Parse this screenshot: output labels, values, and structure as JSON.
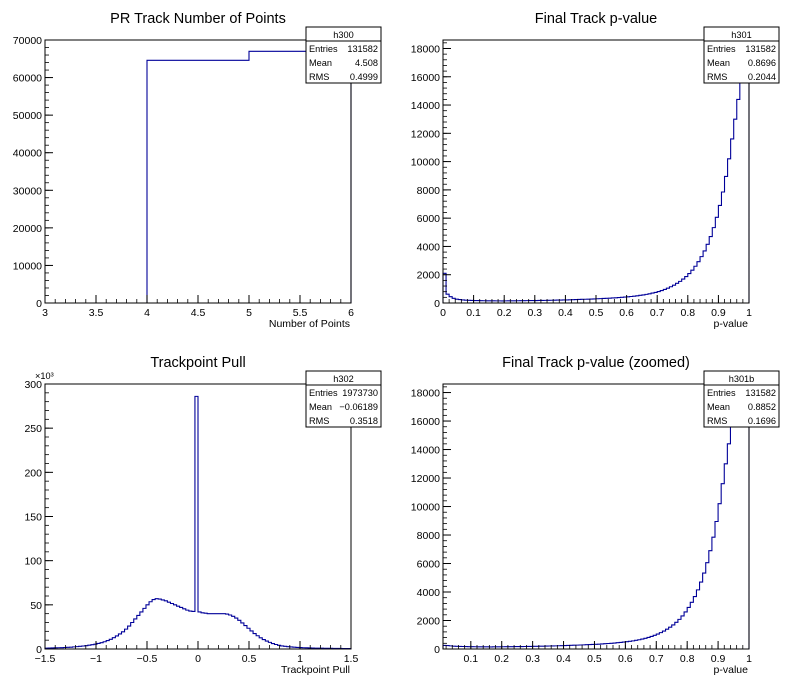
{
  "chart_data": [
    {
      "type": "histogram",
      "title": "PR Track Number of Points",
      "xlabel": "Number of Points",
      "ylabel": "",
      "xlim": [
        3,
        6
      ],
      "ylim": [
        0,
        70000
      ],
      "exponent_label": "",
      "x_ticks": [
        3,
        3.5,
        4,
        4.5,
        5,
        5.5,
        6
      ],
      "x_tick_labels": [
        "3",
        "3.5",
        "4",
        "4.5",
        "5",
        "5.5",
        "6"
      ],
      "y_ticks": [
        0,
        10000,
        20000,
        30000,
        40000,
        50000,
        60000,
        70000
      ],
      "y_tick_labels": [
        "0",
        "10000",
        "20000",
        "30000",
        "40000",
        "50000",
        "60000",
        "70000"
      ],
      "bin_edges": [
        3,
        4,
        5,
        6
      ],
      "counts": [
        0,
        64600,
        66982
      ],
      "stats": {
        "name": "h300",
        "rows": [
          [
            "Entries",
            "131582"
          ],
          [
            "Mean",
            "4.508"
          ],
          [
            "RMS",
            "0.4999"
          ]
        ]
      }
    },
    {
      "type": "histogram",
      "title": "Final Track p-value",
      "xlabel": "p-value",
      "ylabel": "",
      "xlim": [
        0,
        1
      ],
      "ylim": [
        0,
        18600
      ],
      "exponent_label": "",
      "x_ticks": [
        0,
        0.1,
        0.2,
        0.3,
        0.4,
        0.5,
        0.6,
        0.7,
        0.8,
        0.9,
        1
      ],
      "x_tick_labels": [
        "0",
        "0.1",
        "0.2",
        "0.3",
        "0.4",
        "0.5",
        "0.6",
        "0.7",
        "0.8",
        "0.9",
        "1"
      ],
      "y_ticks": [
        0,
        2000,
        4000,
        6000,
        8000,
        10000,
        12000,
        14000,
        16000,
        18000
      ],
      "y_tick_labels": [
        "0",
        "2000",
        "4000",
        "6000",
        "8000",
        "10000",
        "12000",
        "14000",
        "16000",
        "18000"
      ],
      "bin_edges_range": [
        0,
        1,
        100
      ],
      "counts": [
        2100,
        620,
        450,
        330,
        270,
        240,
        220,
        200,
        190,
        180,
        175,
        170,
        165,
        160,
        158,
        155,
        152,
        150,
        150,
        148,
        150,
        152,
        155,
        158,
        160,
        162,
        165,
        168,
        170,
        172,
        175,
        178,
        180,
        185,
        190,
        195,
        200,
        205,
        210,
        215,
        220,
        228,
        235,
        242,
        250,
        258,
        265,
        272,
        280,
        290,
        300,
        310,
        320,
        330,
        340,
        355,
        370,
        385,
        400,
        420,
        440,
        460,
        485,
        510,
        540,
        570,
        610,
        650,
        700,
        750,
        810,
        880,
        960,
        1050,
        1150,
        1260,
        1390,
        1530,
        1690,
        1870,
        2080,
        2320,
        2600,
        2920,
        3280,
        3680,
        4150,
        4700,
        5330,
        6060,
        6900,
        7850,
        8950,
        10200,
        11600,
        13000,
        14400,
        15600,
        16500,
        17500
      ],
      "stats": {
        "name": "h301",
        "rows": [
          [
            "Entries",
            "131582"
          ],
          [
            "Mean",
            "0.8696"
          ],
          [
            "RMS",
            "0.2044"
          ]
        ]
      }
    },
    {
      "type": "histogram",
      "title": "Trackpoint Pull",
      "xlabel": "Trackpoint Pull",
      "ylabel": "",
      "xlim": [
        -1.5,
        1.5
      ],
      "ylim": [
        0,
        300000
      ],
      "exponent_label": "×10³",
      "x_ticks": [
        -1.5,
        -1,
        -0.5,
        0,
        0.5,
        1,
        1.5
      ],
      "x_tick_labels": [
        "−1.5",
        "−1",
        "−0.5",
        "0",
        "0.5",
        "1",
        "1.5"
      ],
      "y_ticks": [
        0,
        50000,
        100000,
        150000,
        200000,
        250000,
        300000
      ],
      "y_tick_labels": [
        "0",
        "50",
        "100",
        "150",
        "200",
        "250",
        "300"
      ],
      "bin_edges_range": [
        -1.5,
        1.5,
        100
      ],
      "counts": [
        1000,
        1100,
        1200,
        1300,
        1400,
        1500,
        1700,
        1900,
        2100,
        2400,
        2700,
        3000,
        3400,
        3800,
        4300,
        4900,
        5500,
        6300,
        7200,
        8200,
        9500,
        11000,
        12800,
        14800,
        17000,
        19500,
        22500,
        26000,
        30000,
        34000,
        38000,
        42000,
        46000,
        50000,
        53500,
        56000,
        57000,
        56500,
        55500,
        54500,
        53000,
        51500,
        50000,
        48500,
        47000,
        45500,
        44000,
        43000,
        42500,
        286000,
        42000,
        41000,
        40500,
        40000,
        40000,
        40000,
        40000,
        40000,
        40000,
        39500,
        38500,
        37000,
        35000,
        32500,
        29500,
        26500,
        23500,
        20500,
        17500,
        15000,
        12700,
        10700,
        9000,
        7500,
        6200,
        5100,
        4200,
        3500,
        3000,
        2600,
        2300,
        2000,
        1800,
        1600,
        1400,
        1300,
        1200,
        1100,
        1000,
        950,
        900,
        850,
        800,
        750,
        700,
        650,
        600,
        550,
        500,
        500
      ],
      "stats": {
        "name": "h302",
        "rows": [
          [
            "Entries",
            "1973730"
          ],
          [
            "Mean",
            "−0.06189"
          ],
          [
            "RMS",
            "0.3518"
          ]
        ]
      }
    },
    {
      "type": "histogram",
      "title": "Final Track p-value (zoomed)",
      "xlabel": "p-value",
      "ylabel": "",
      "xlim": [
        0.01,
        1
      ],
      "ylim": [
        0,
        18600
      ],
      "exponent_label": "",
      "x_ticks": [
        0.1,
        0.2,
        0.3,
        0.4,
        0.5,
        0.6,
        0.7,
        0.8,
        0.9,
        1
      ],
      "x_tick_labels": [
        "0.1",
        "0.2",
        "0.3",
        "0.4",
        "0.5",
        "0.6",
        "0.7",
        "0.8",
        "0.9",
        "1"
      ],
      "y_ticks": [
        0,
        2000,
        4000,
        6000,
        8000,
        10000,
        12000,
        14000,
        16000,
        18000
      ],
      "y_tick_labels": [
        "0",
        "2000",
        "4000",
        "6000",
        "8000",
        "10000",
        "12000",
        "14000",
        "16000",
        "18000"
      ],
      "bin_edges_range": [
        0.01,
        1,
        99
      ],
      "counts": [
        250,
        240,
        220,
        200,
        190,
        180,
        175,
        170,
        165,
        160,
        158,
        155,
        152,
        150,
        150,
        148,
        150,
        152,
        155,
        158,
        160,
        162,
        165,
        168,
        170,
        172,
        175,
        178,
        180,
        185,
        190,
        195,
        200,
        205,
        210,
        215,
        220,
        228,
        235,
        242,
        250,
        258,
        265,
        272,
        280,
        290,
        300,
        310,
        320,
        330,
        340,
        355,
        370,
        385,
        400,
        420,
        440,
        460,
        485,
        510,
        540,
        570,
        610,
        650,
        700,
        750,
        810,
        880,
        960,
        1050,
        1150,
        1260,
        1390,
        1530,
        1690,
        1870,
        2080,
        2320,
        2600,
        2920,
        3280,
        3680,
        4150,
        4700,
        5330,
        6060,
        6900,
        7850,
        8950,
        10200,
        11600,
        13000,
        14400,
        15600,
        16500,
        17500,
        17800,
        17900,
        18000
      ],
      "stats": {
        "name": "h301b",
        "rows": [
          [
            "Entries",
            "131582"
          ],
          [
            "Mean",
            "0.8852"
          ],
          [
            "RMS",
            "0.1696"
          ]
        ]
      }
    }
  ],
  "style": {
    "line_color": "#000099",
    "frame_color": "#000000",
    "background": "#ffffff"
  }
}
